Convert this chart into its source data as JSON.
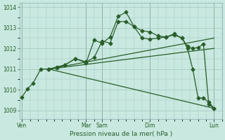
{
  "bg_color": "#c8e8e0",
  "grid_color": "#a0c8c0",
  "line_color": "#2a5e2a",
  "marker_color": "#2a5e2a",
  "xlabel": "Pression niveau de la mer( hPa )",
  "ylim": [
    1008.6,
    1014.2
  ],
  "yticks": [
    1009,
    1010,
    1011,
    1012,
    1013,
    1014
  ],
  "xtick_labels": [
    "Ven",
    "Mar",
    "Sam",
    "Dim",
    "Lun"
  ],
  "xtick_positions": [
    0,
    24,
    30,
    48,
    72
  ],
  "xlim": [
    -1,
    75
  ],
  "series_main": {
    "x": [
      0,
      2,
      4,
      7,
      10,
      13,
      16,
      20,
      24,
      27,
      30,
      33,
      36,
      39,
      42,
      45,
      48,
      51,
      54,
      57,
      60,
      62,
      64,
      66,
      68,
      70,
      72
    ],
    "y": [
      1009.65,
      1010.05,
      1010.3,
      1011.0,
      1011.0,
      1011.05,
      1011.2,
      1011.5,
      1011.3,
      1012.4,
      1012.25,
      1012.55,
      1013.55,
      1013.75,
      1013.05,
      1012.5,
      1012.45,
      1012.5,
      1012.55,
      1012.65,
      1012.5,
      1012.1,
      1012.0,
      1012.05,
      1012.2,
      1009.3,
      1009.1
    ]
  },
  "series2": {
    "x": [
      10,
      13,
      16,
      20,
      24,
      27,
      30,
      33,
      36,
      39,
      42,
      45,
      48,
      51,
      54,
      57,
      60,
      62,
      64,
      66,
      68,
      70,
      72
    ],
    "y": [
      1011.0,
      1011.1,
      1011.2,
      1011.5,
      1011.35,
      1011.55,
      1012.35,
      1012.25,
      1013.3,
      1013.3,
      1013.05,
      1012.85,
      1012.8,
      1012.6,
      1012.55,
      1012.7,
      1012.5,
      1012.0,
      1011.0,
      1009.6,
      1009.6,
      1009.4,
      1009.1
    ]
  },
  "trend_down": {
    "x": [
      10,
      72
    ],
    "y": [
      1011.0,
      1009.1
    ]
  },
  "trend_mid": {
    "x": [
      10,
      72
    ],
    "y": [
      1011.0,
      1012.0
    ]
  },
  "trend_up": {
    "x": [
      10,
      72
    ],
    "y": [
      1011.0,
      1012.5
    ]
  }
}
